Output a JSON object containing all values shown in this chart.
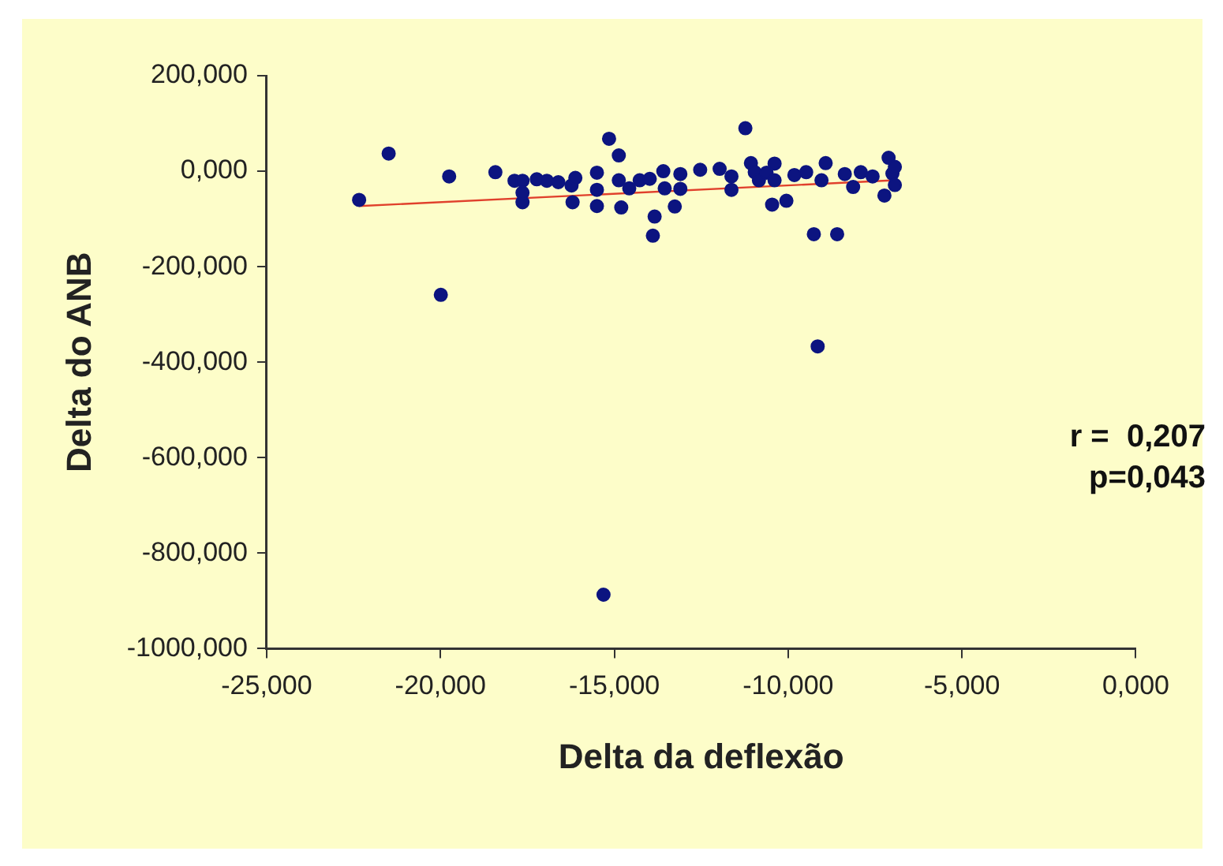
{
  "chart_data": {
    "type": "scatter",
    "xlabel": "Delta da deflexão",
    "ylabel": "Delta do ANB",
    "xlim": [
      -25,
      0
    ],
    "ylim": [
      -1000,
      200
    ],
    "xticks": [
      {
        "value": -25,
        "label": "-25,000"
      },
      {
        "value": -20,
        "label": "-20,000"
      },
      {
        "value": -15,
        "label": "-15,000"
      },
      {
        "value": -10,
        "label": "-10,000"
      },
      {
        "value": -5,
        "label": "-5,000"
      },
      {
        "value": 0,
        "label": "0,000"
      }
    ],
    "yticks": [
      {
        "value": 200,
        "label": "200,000"
      },
      {
        "value": 0,
        "label": "0,000"
      },
      {
        "value": -200,
        "label": "-200,000"
      },
      {
        "value": -400,
        "label": "-400,000"
      },
      {
        "value": -600,
        "label": "-600,000"
      },
      {
        "value": -800,
        "label": "-800,000"
      },
      {
        "value": -1000,
        "label": "-1000,000"
      }
    ],
    "grid": false,
    "legend": false,
    "marker": "circle",
    "series": [
      {
        "type": "scatter",
        "color": "#0c1480",
        "x": [
          -22.34,
          -21.49,
          -19.99,
          -19.75,
          -18.42,
          -17.87,
          -17.64,
          -17.64,
          -17.64,
          -17.23,
          -16.94,
          -16.61,
          -16.23,
          -16.2,
          -16.12,
          -15.5,
          -15.5,
          -15.5,
          -15.31,
          -15.15,
          -14.87,
          -14.87,
          -14.8,
          -14.57,
          -14.27,
          -13.98,
          -13.84,
          -13.89,
          -13.59,
          -13.55,
          -13.26,
          -13.1,
          -13.1,
          -12.53,
          -11.97,
          -11.63,
          -11.63,
          -11.23,
          -11.07,
          -10.96,
          -10.84,
          -10.62,
          -10.39,
          -10.39,
          -10.46,
          -10.05,
          -9.82,
          -9.48,
          -9.26,
          -9.15,
          -9.04,
          -8.92,
          -8.59,
          -8.37,
          -8.13,
          -7.91,
          -7.57,
          -7.23,
          -7.11,
          -7,
          -6.93,
          -6.93
        ],
        "values": [
          -60,
          37,
          -259,
          -11,
          -2,
          -20,
          -20,
          -65,
          -45,
          -17,
          -20,
          -23,
          -30,
          -65,
          -14,
          -3,
          -39,
          -73,
          -887,
          68,
          33,
          -19,
          -76,
          -36,
          -19,
          -16,
          -95,
          -135,
          0,
          -36,
          -74,
          -6,
          -37,
          3,
          5,
          -39,
          -11,
          90,
          17,
          -2,
          -19,
          -3,
          16,
          -19,
          -70,
          -62,
          -8,
          -2,
          -132,
          -367,
          -19,
          17,
          -132,
          -6,
          -33,
          -2,
          -11,
          -51,
          28,
          -5,
          -29,
          9
        ]
      },
      {
        "type": "line",
        "color": "#e0402c",
        "marker": "none",
        "x": [
          -22.34,
          -6.93
        ],
        "values": [
          -73,
          -19
        ]
      }
    ],
    "annotations": [
      "r =  0,207",
      "p=0,043"
    ]
  }
}
